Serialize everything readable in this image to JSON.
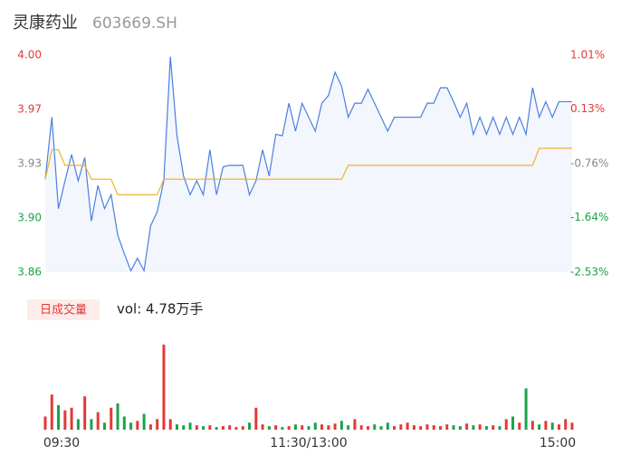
{
  "chart_data": [
    {
      "type": "line",
      "title": "灵康药业",
      "subtitle": "603669.SH",
      "series": [
        {
          "color": "#4a7fe0",
          "values": [
            3.92,
            3.96,
            3.901,
            3.919,
            3.936,
            3.919,
            3.934,
            3.893,
            3.916,
            3.901,
            3.91,
            3.884,
            3.872,
            3.861,
            3.869,
            3.861,
            3.89,
            3.899,
            3.919,
            3.999,
            3.948,
            3.922,
            3.91,
            3.919,
            3.91,
            3.939,
            3.91,
            3.928,
            3.929,
            3.929,
            3.929,
            3.91,
            3.919,
            3.939,
            3.922,
            3.949,
            3.948,
            3.969,
            3.951,
            3.969,
            3.96,
            3.951,
            3.969,
            3.974,
            3.989,
            3.98,
            3.96,
            3.969,
            3.969,
            3.978,
            3.969,
            3.96,
            3.951,
            3.96,
            3.96,
            3.96,
            3.96,
            3.96,
            3.969,
            3.969,
            3.979,
            3.979,
            3.97,
            3.96,
            3.969,
            3.949,
            3.96,
            3.949,
            3.96,
            3.949,
            3.96,
            3.949,
            3.96,
            3.949,
            3.979,
            3.96,
            3.97,
            3.96,
            3.97,
            3.97,
            3.97
          ]
        },
        {
          "color": "#f0b429",
          "values": [
            3.92,
            3.939,
            3.939,
            3.929,
            3.929,
            3.929,
            3.929,
            3.92,
            3.92,
            3.92,
            3.92,
            3.91,
            3.91,
            3.91,
            3.91,
            3.91,
            3.91,
            3.91,
            3.92,
            3.92,
            3.92,
            3.92,
            3.92,
            3.92,
            3.92,
            3.92,
            3.92,
            3.92,
            3.92,
            3.92,
            3.92,
            3.92,
            3.92,
            3.92,
            3.92,
            3.92,
            3.92,
            3.92,
            3.92,
            3.92,
            3.92,
            3.92,
            3.92,
            3.92,
            3.92,
            3.92,
            3.929,
            3.929,
            3.929,
            3.929,
            3.929,
            3.929,
            3.929,
            3.929,
            3.929,
            3.929,
            3.929,
            3.929,
            3.929,
            3.929,
            3.929,
            3.929,
            3.929,
            3.929,
            3.929,
            3.929,
            3.929,
            3.929,
            3.929,
            3.929,
            3.929,
            3.929,
            3.929,
            3.929,
            3.929,
            3.94,
            3.94,
            3.94,
            3.94,
            3.94,
            3.94
          ]
        }
      ],
      "area_color": "#f3f6fd",
      "ylim": [
        3.86,
        4.0
      ],
      "yticks": [
        {
          "value": 4.0,
          "label": "4.00"
        },
        {
          "value": 3.965,
          "label": "3.97"
        },
        3.93,
        {
          "value": 3.895,
          "label": "3.90"
        },
        3.86
      ],
      "ytick_colors": [
        "#e53935",
        "#e53935",
        "#888888",
        "#1aa34a",
        "#1aa34a"
      ],
      "y2lim": [
        -2.53,
        1.01
      ],
      "y2ticks": [
        {
          "value": 1.01,
          "label": "1.01%"
        },
        {
          "value": 0.13,
          "label": "0.13%"
        },
        {
          "value": -0.76,
          "label": "-0.76%"
        },
        {
          "value": -1.64,
          "label": "-1.64%"
        },
        {
          "value": -2.53,
          "label": "-2.53%"
        }
      ]
    },
    {
      "type": "bar",
      "button": "日成交量",
      "label": "vol: 4.78万手",
      "categories": [
        "09:30",
        null,
        null,
        null,
        null,
        null,
        null,
        null,
        null,
        null,
        null,
        null,
        null,
        null,
        null,
        null,
        null,
        null,
        null,
        null,
        null,
        null,
        null,
        null,
        null,
        null,
        null,
        null,
        null,
        null,
        null,
        null,
        null,
        null,
        null,
        null,
        null,
        null,
        null,
        null,
        "11:30/13:00",
        null,
        null,
        null,
        null,
        null,
        null,
        null,
        null,
        null,
        null,
        null,
        null,
        null,
        null,
        null,
        null,
        null,
        null,
        null,
        null,
        null,
        null,
        null,
        null,
        null,
        null,
        null,
        null,
        null,
        null,
        null,
        null,
        null,
        null,
        null,
        null,
        null,
        null,
        null,
        "15:00"
      ],
      "values": [
        15,
        40,
        28,
        22,
        25,
        12,
        38,
        12,
        20,
        8,
        25,
        30,
        15,
        8,
        10,
        18,
        6,
        12,
        97,
        12,
        6,
        5,
        8,
        5,
        4,
        5,
        3,
        4,
        5,
        3,
        4,
        8,
        25,
        6,
        4,
        5,
        3,
        4,
        6,
        5,
        4,
        8,
        6,
        5,
        7,
        10,
        5,
        12,
        5,
        4,
        6,
        4,
        8,
        4,
        6,
        8,
        5,
        4,
        6,
        5,
        4,
        6,
        5,
        4,
        7,
        5,
        6,
        4,
        5,
        4,
        12,
        15,
        8,
        47,
        10,
        6,
        10,
        8,
        6,
        12,
        8
      ],
      "ylim": [
        0,
        100
      ],
      "up_color": "#e53935",
      "down_color": "#1aa34a"
    }
  ]
}
